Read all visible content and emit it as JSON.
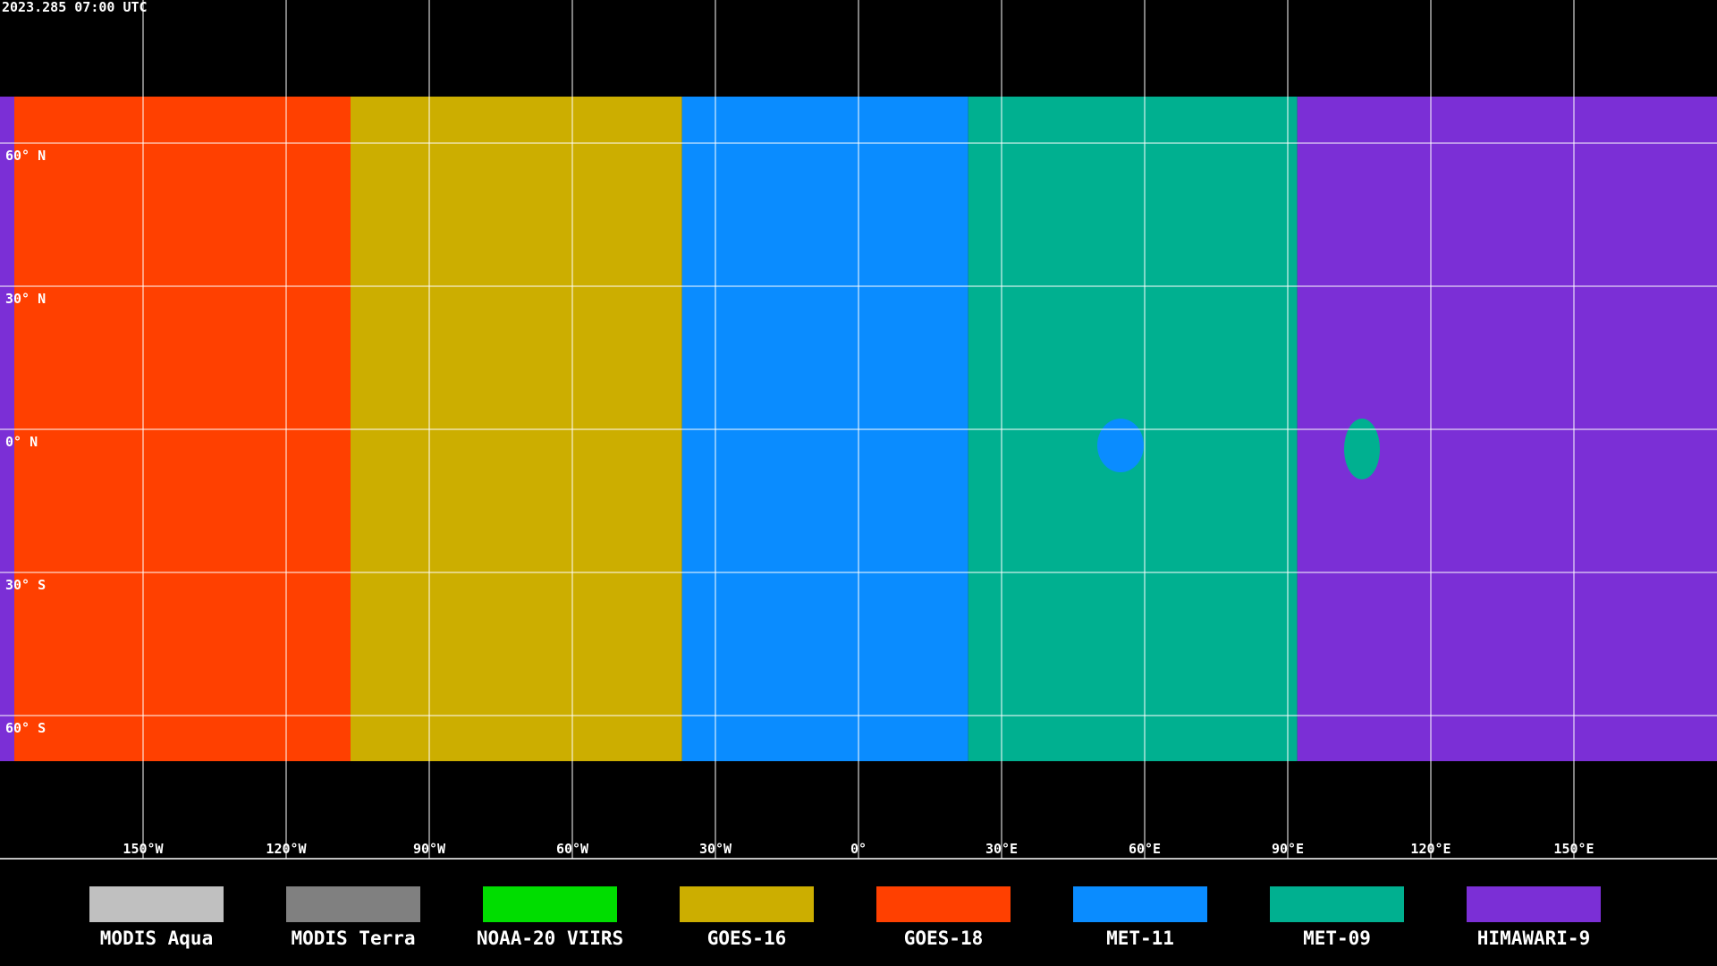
{
  "header": {
    "timestamp": "2023.285 07:00 UTC"
  },
  "map": {
    "lat_labels": [
      "60° N",
      "30° N",
      "0° N",
      "30° S",
      "60° S"
    ],
    "lon_labels": [
      "150°W",
      "120°W",
      "90°W",
      "60°W",
      "30°W",
      "0°",
      "30°E",
      "60°E",
      "90°E",
      "120°E",
      "150°E"
    ]
  },
  "legend": [
    {
      "name": "MODIS Aqua",
      "color": "#c0c0c0"
    },
    {
      "name": "MODIS Terra",
      "color": "#808080"
    },
    {
      "name": "NOAA-20 VIIRS",
      "color": "#00dd00"
    },
    {
      "name": "GOES-16",
      "color": "#ccae00"
    },
    {
      "name": "GOES-18",
      "color": "#ff4000"
    },
    {
      "name": "MET-11",
      "color": "#0a8cff"
    },
    {
      "name": "MET-09",
      "color": "#00b090"
    },
    {
      "name": "HIMAWARI-9",
      "color": "#7b2fd6"
    }
  ]
}
